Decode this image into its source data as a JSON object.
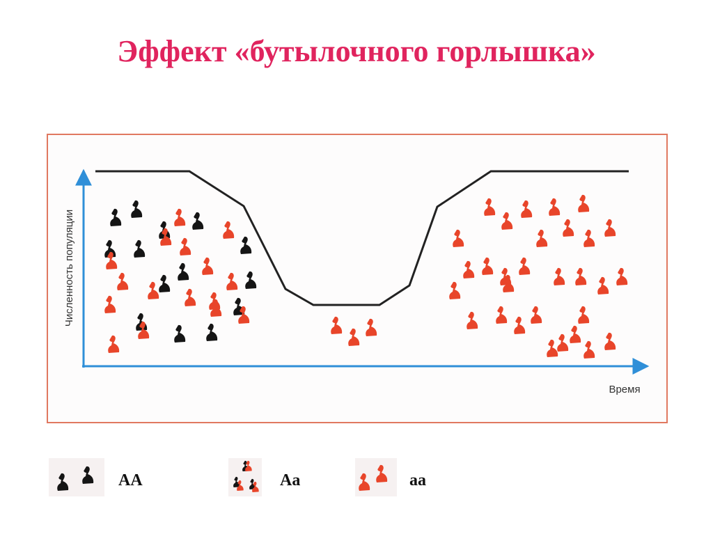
{
  "title": "Эффект «бутылочного горлышка»",
  "diagram": {
    "y_axis_label": "Численность популяции",
    "x_axis_label": "Время"
  },
  "legend": [
    {
      "label": "AA"
    },
    {
      "label": "Aa"
    },
    {
      "label": "aa"
    }
  ]
}
